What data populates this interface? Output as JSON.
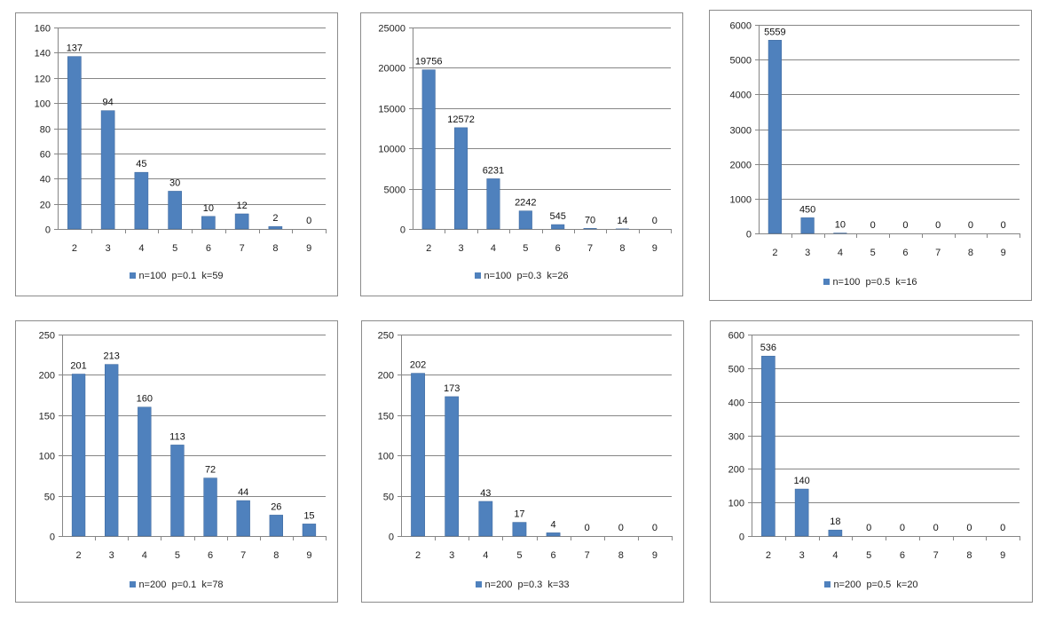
{
  "colors": {
    "bar": "#4f81bd",
    "bar_edge": "#3a659b",
    "grid": "#868686",
    "border": "#8c8c8c"
  },
  "chart_data": [
    {
      "type": "bar",
      "legend": "n=100  p=0.1  k=59",
      "categories": [
        "2",
        "3",
        "4",
        "5",
        "6",
        "7",
        "8",
        "9"
      ],
      "values": [
        137,
        94,
        45,
        30,
        10,
        12,
        2,
        0
      ],
      "ylim": [
        0,
        160
      ],
      "yticks": [
        0,
        20,
        40,
        60,
        80,
        100,
        120,
        140,
        160
      ]
    },
    {
      "type": "bar",
      "legend": "n=100  p=0.3  k=26",
      "categories": [
        "2",
        "3",
        "4",
        "5",
        "6",
        "7",
        "8",
        "9"
      ],
      "values": [
        19756,
        12572,
        6231,
        2242,
        545,
        70,
        14,
        0
      ],
      "ylim": [
        0,
        25000
      ],
      "yticks": [
        0,
        5000,
        10000,
        15000,
        20000,
        25000
      ]
    },
    {
      "type": "bar",
      "legend": "n=100  p=0.5  k=16",
      "categories": [
        "2",
        "3",
        "4",
        "5",
        "6",
        "7",
        "8",
        "9"
      ],
      "values": [
        5559,
        450,
        10,
        0,
        0,
        0,
        0,
        0
      ],
      "ylim": [
        0,
        6000
      ],
      "yticks": [
        0,
        1000,
        2000,
        3000,
        4000,
        5000,
        6000
      ]
    },
    {
      "type": "bar",
      "legend": "n=200  p=0.1  k=78",
      "categories": [
        "2",
        "3",
        "4",
        "5",
        "6",
        "7",
        "8",
        "9"
      ],
      "values": [
        201,
        213,
        160,
        113,
        72,
        44,
        26,
        15
      ],
      "ylim": [
        0,
        250
      ],
      "yticks": [
        0,
        50,
        100,
        150,
        200,
        250
      ]
    },
    {
      "type": "bar",
      "legend": "n=200  p=0.3  k=33",
      "categories": [
        "2",
        "3",
        "4",
        "5",
        "6",
        "7",
        "8",
        "9"
      ],
      "values": [
        202,
        173,
        43,
        17,
        4,
        0,
        0,
        0
      ],
      "ylim": [
        0,
        250
      ],
      "yticks": [
        0,
        50,
        100,
        150,
        200,
        250
      ]
    },
    {
      "type": "bar",
      "legend": "n=200  p=0.5  k=20",
      "categories": [
        "2",
        "3",
        "4",
        "5",
        "6",
        "7",
        "8",
        "9"
      ],
      "values": [
        536,
        140,
        18,
        0,
        0,
        0,
        0,
        0
      ],
      "ylim": [
        0,
        600
      ],
      "yticks": [
        0,
        100,
        200,
        300,
        400,
        500,
        600
      ]
    }
  ]
}
